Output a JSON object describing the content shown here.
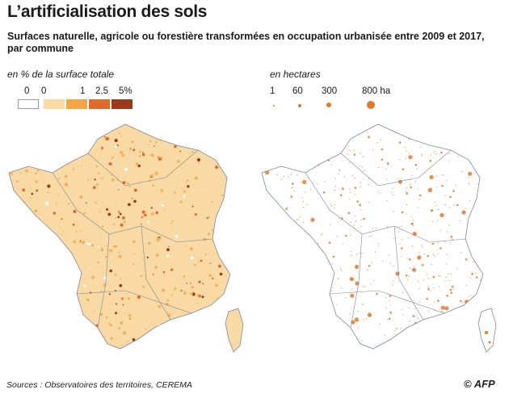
{
  "title": "L’artificialisation des sols",
  "subtitle": "Surfaces naturelle, agricole ou forestière transformées en occupation urbanisée entre 2009 et 2017, par commune",
  "legend_left": {
    "label": "en % de la surface totale",
    "ticks": [
      "0",
      "0",
      "1",
      "2,5",
      "5%"
    ],
    "colors": [
      "#ffffff",
      "#fbd9a0",
      "#f4a544",
      "#e06a2a",
      "#9b3a1a"
    ]
  },
  "legend_right": {
    "label": "en hectares",
    "ticks": [
      "1",
      "60",
      "300",
      "800 ha"
    ],
    "dot_values": [
      1,
      60,
      300,
      800
    ]
  },
  "source": "Sources : Observatoires des territoires, CEREMA",
  "credit": "© AFP",
  "colors": {
    "fill_light": "#f9d9a4",
    "fill_mid": "#f2b25a",
    "dot": "#e07a2e",
    "border": "#7b8a9a"
  }
}
